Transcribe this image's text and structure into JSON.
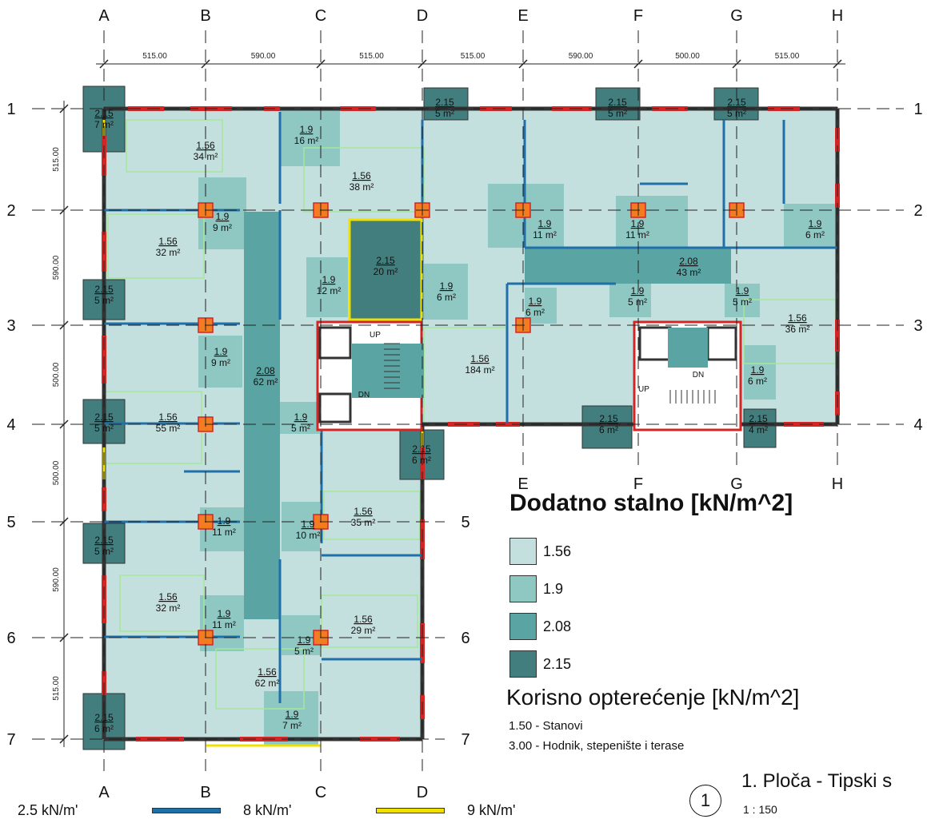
{
  "grid": {
    "columns": [
      "A",
      "B",
      "C",
      "D",
      "E",
      "F",
      "G",
      "H"
    ],
    "rows": [
      "1",
      "2",
      "3",
      "4",
      "5",
      "6",
      "7"
    ],
    "column_spacings": [
      "515.00",
      "590.00",
      "515.00",
      "515.00",
      "590.00",
      "500.00",
      "515.00"
    ],
    "row_spacings": [
      "515.00",
      "590.00",
      "500.00",
      "500.00",
      "590.00",
      "515.00"
    ]
  },
  "colors": {
    "load_1_56": "#c4e0de",
    "load_1_9": "#8fc7c3",
    "load_2_08": "#5aa5a3",
    "load_2_15": "#437e7e",
    "wall_red": "#d42525",
    "wall_blue": "#1f6fa8",
    "wall_yellow": "#f0e000",
    "column_orange": "#f47c20",
    "room_outline": "#a5e79a"
  },
  "rooms": [
    {
      "load": "2.15",
      "area": "7 m²"
    },
    {
      "load": "1.56",
      "area": "34 m²"
    },
    {
      "load": "1.9",
      "area": "16 m²"
    },
    {
      "load": "1.56",
      "area": "38 m²"
    },
    {
      "load": "2.15",
      "area": "5 m²"
    },
    {
      "load": "2.15",
      "area": "5 m²"
    },
    {
      "load": "2.15",
      "area": "5 m²"
    },
    {
      "load": "1.9",
      "area": "9 m²"
    },
    {
      "load": "1.56",
      "area": "32 m²"
    },
    {
      "load": "2.15",
      "area": "20 m²"
    },
    {
      "load": "1.9",
      "area": "11 m²"
    },
    {
      "load": "1.9",
      "area": "11 m²"
    },
    {
      "load": "1.9",
      "area": "6 m²"
    },
    {
      "load": "2.08",
      "area": "43 m²"
    },
    {
      "load": "1.9",
      "area": "12 m²"
    },
    {
      "load": "1.9",
      "area": "6 m²"
    },
    {
      "load": "2.15",
      "area": "5 m²"
    },
    {
      "load": "1.9",
      "area": "6 m²"
    },
    {
      "load": "1.9",
      "area": "5 m²"
    },
    {
      "load": "1.9",
      "area": "5 m²"
    },
    {
      "load": "1.9",
      "area": "9 m²"
    },
    {
      "load": "2.08",
      "area": "62 m²"
    },
    {
      "load": "1.56",
      "area": "184 m²"
    },
    {
      "load": "1.56",
      "area": "36 m²"
    },
    {
      "load": "1.9",
      "area": "6 m²"
    },
    {
      "load": "2.15",
      "area": "5 m²"
    },
    {
      "load": "1.56",
      "area": "55 m²"
    },
    {
      "load": "1.9",
      "area": "5 m²"
    },
    {
      "load": "2.15",
      "area": "6 m²"
    },
    {
      "load": "2.15",
      "area": "4 m²"
    },
    {
      "load": "2.15",
      "area": "6 m²"
    },
    {
      "load": "1.9",
      "area": "11 m²"
    },
    {
      "load": "1.9",
      "area": "10 m²"
    },
    {
      "load": "1.56",
      "area": "35 m²"
    },
    {
      "load": "2.15",
      "area": "5 m²"
    },
    {
      "load": "1.56",
      "area": "32 m²"
    },
    {
      "load": "1.9",
      "area": "11 m²"
    },
    {
      "load": "1.56",
      "area": "29 m²"
    },
    {
      "load": "1.9",
      "area": "5 m²"
    },
    {
      "load": "1.56",
      "area": "62 m²"
    },
    {
      "load": "2.15",
      "area": "6 m²"
    },
    {
      "load": "1.9",
      "area": "7 m²"
    }
  ],
  "stairs": {
    "up": "UP",
    "down": "DN"
  },
  "legend": {
    "title": "Dodatno stalno [kN/m^2]",
    "items": [
      {
        "value": "1.56",
        "color": "#c4e0de"
      },
      {
        "value": "1.9",
        "color": "#8fc7c3"
      },
      {
        "value": "2.08",
        "color": "#5aa5a3"
      },
      {
        "value": "2.15",
        "color": "#437e7e"
      }
    ]
  },
  "live_load": {
    "title": "Korisno opterećenje [kN/m^2]",
    "items": [
      "1.50 - Stanovi",
      "3.00 - Hodnik, stepenište i terase"
    ]
  },
  "view": {
    "number": "1",
    "title": "1. Ploča - Tipski s",
    "scale": "1 : 150"
  },
  "line_loads": [
    {
      "label": "2.5 kN/m'",
      "color": "#d42525"
    },
    {
      "label": "8 kN/m'",
      "color": "#1f6fa8"
    },
    {
      "label": "9 kN/m'",
      "color": "#f0e000"
    }
  ]
}
